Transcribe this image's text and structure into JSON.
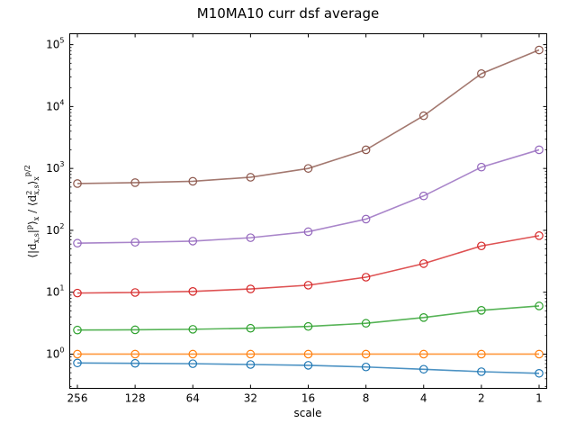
{
  "chart_data": {
    "type": "line",
    "title": "M10MA10 curr dsf average",
    "xlabel": "scale",
    "ylabel": "⟨|d_{x,s}|^p⟩_x / ⟨d_{x,s}^2⟩_x^{p/2}",
    "x": [
      256,
      128,
      64,
      32,
      16,
      8,
      4,
      2,
      1
    ],
    "x_tick_labels": [
      "256",
      "128",
      "64",
      "32",
      "16",
      "8",
      "4",
      "2",
      "1"
    ],
    "x_scale": "log2-reversed",
    "y_scale": "log",
    "ylim": [
      0.28,
      150000
    ],
    "y_tick_labels": [
      {
        "base": "10",
        "exp": "0"
      },
      {
        "base": "10",
        "exp": "1"
      },
      {
        "base": "10",
        "exp": "2"
      },
      {
        "base": "10",
        "exp": "3"
      },
      {
        "base": "10",
        "exp": "4"
      },
      {
        "base": "10",
        "exp": "5"
      }
    ],
    "grid": false,
    "legend": "none",
    "marker": "open-circle",
    "series": [
      {
        "color": "#1f77b4",
        "values": [
          0.72,
          0.71,
          0.7,
          0.68,
          0.66,
          0.62,
          0.57,
          0.52,
          0.49
        ]
      },
      {
        "color": "#ff7f0e",
        "values": [
          1.0,
          1.0,
          1.0,
          1.0,
          1.0,
          1.0,
          1.0,
          1.0,
          1.0
        ]
      },
      {
        "color": "#2ca02c",
        "values": [
          2.45,
          2.47,
          2.52,
          2.62,
          2.8,
          3.15,
          3.9,
          5.1,
          6.0
        ]
      },
      {
        "color": "#d62728",
        "values": [
          9.7,
          9.9,
          10.3,
          11.3,
          13.0,
          17.5,
          29.0,
          56.0,
          82.0
        ]
      },
      {
        "color": "#9467bd",
        "values": [
          62,
          64,
          67,
          76,
          95,
          152,
          360,
          1050,
          2000
        ]
      },
      {
        "color": "#8c564b",
        "values": [
          570,
          590,
          620,
          720,
          1000,
          2000,
          7100,
          34000,
          82000
        ]
      }
    ]
  }
}
